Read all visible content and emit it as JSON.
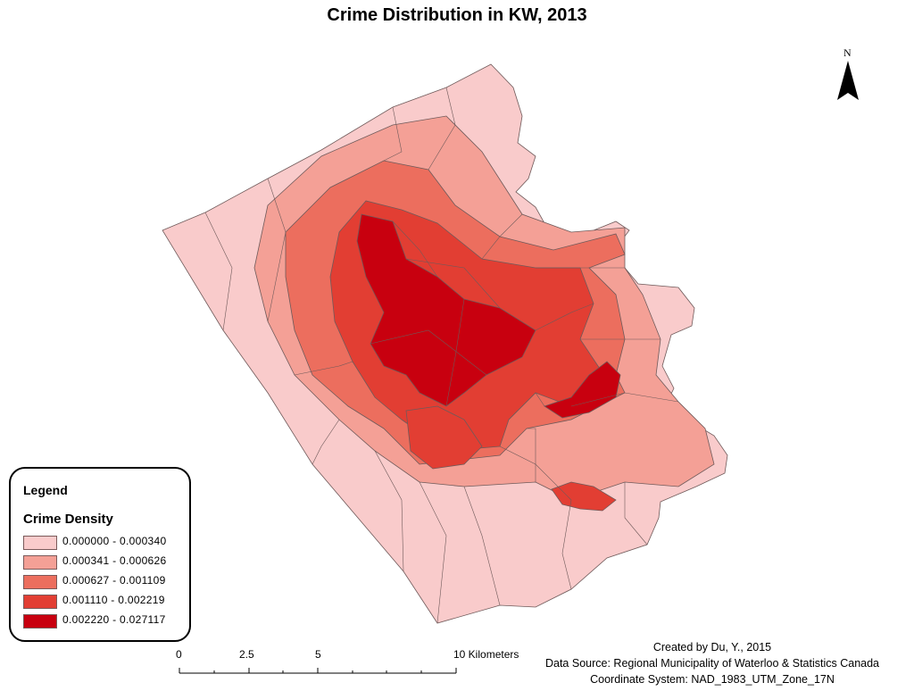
{
  "title": "Crime Distribution in KW, 2013",
  "north_label": "N",
  "legend": {
    "title": "Legend",
    "subtitle": "Crime Density",
    "classes": [
      {
        "label": "0.000000 - 0.000340",
        "color": "#f9cbcb"
      },
      {
        "label": "0.000341 - 0.000626",
        "color": "#f4a096"
      },
      {
        "label": "0.000627 - 0.001109",
        "color": "#ec6e5e"
      },
      {
        "label": "0.001110 - 0.002219",
        "color": "#e23e33"
      },
      {
        "label": "0.002220 - 0.027117",
        "color": "#c8000f"
      }
    ]
  },
  "scale": {
    "labels": [
      "0",
      "2.5",
      "5",
      "10 Kilometers"
    ]
  },
  "credits": {
    "created_by": "Created by Du, Y., 2015",
    "data_source": "Data Source: Regional Municipality of Waterloo & Statistics Canada",
    "coordinate_system": "Coordinate System: NAD_1983_UTM_Zone_17N"
  }
}
